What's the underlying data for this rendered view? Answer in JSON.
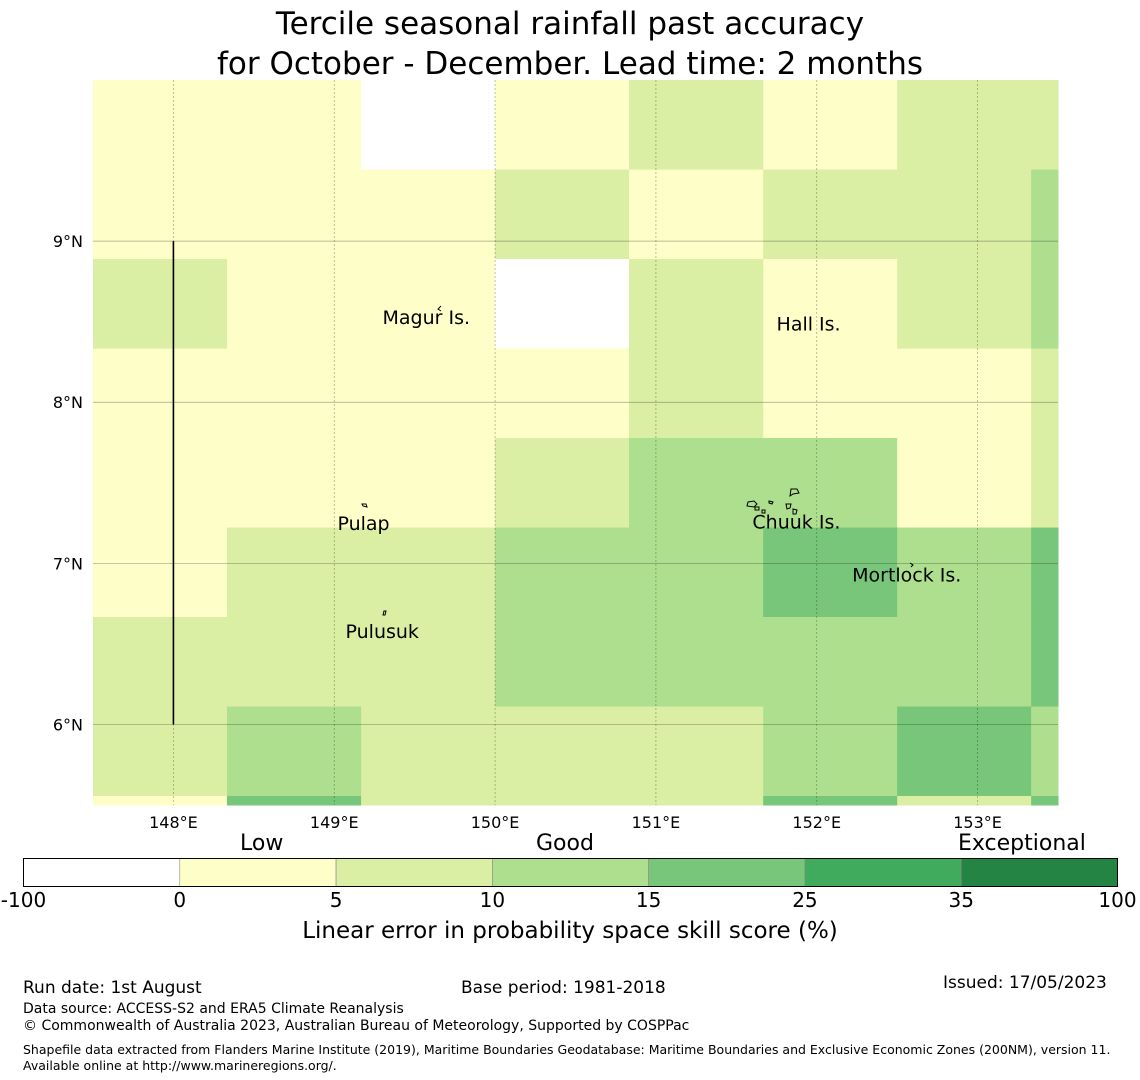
{
  "title_line1": "Tercile seasonal rainfall past accuracy",
  "title_line2": "for October - December. Lead time: 2 months",
  "map": {
    "lon_range": [
      147.5,
      153.5
    ],
    "lat_range": [
      5.5,
      10.0
    ],
    "x_ticks": [
      {
        "lon": 148,
        "label": "148°E"
      },
      {
        "lon": 149,
        "label": "149°E"
      },
      {
        "lon": 150,
        "label": "150°E"
      },
      {
        "lon": 151,
        "label": "151°E"
      },
      {
        "lon": 152,
        "label": "152°E"
      },
      {
        "lon": 153,
        "label": "153°E"
      }
    ],
    "y_ticks": [
      {
        "lat": 9,
        "label": "9°N"
      },
      {
        "lat": 8,
        "label": "8°N"
      },
      {
        "lat": 7,
        "label": "7°N"
      },
      {
        "lat": 6,
        "label": "6°N"
      }
    ],
    "grid_lon_edges": [
      147.5,
      148.333,
      149.167,
      150.0,
      150.833,
      151.667,
      152.5,
      153.333,
      153.5
    ],
    "grid_lat_edges": [
      10.0,
      9.444,
      8.889,
      8.333,
      7.778,
      7.222,
      6.667,
      6.111,
      5.556,
      5.5
    ],
    "cells": [
      [
        1,
        1,
        0,
        1,
        2,
        1,
        2,
        2
      ],
      [
        1,
        1,
        1,
        2,
        1,
        2,
        2,
        3
      ],
      [
        2,
        1,
        1,
        0,
        2,
        1,
        2,
        3
      ],
      [
        1,
        1,
        1,
        1,
        2,
        1,
        1,
        2
      ],
      [
        1,
        1,
        1,
        2,
        3,
        3,
        1,
        2
      ],
      [
        1,
        2,
        2,
        3,
        3,
        4,
        3,
        4
      ],
      [
        2,
        2,
        2,
        3,
        3,
        3,
        3,
        4
      ],
      [
        2,
        3,
        2,
        2,
        2,
        3,
        4,
        3
      ],
      [
        1,
        4,
        2,
        2,
        2,
        4,
        2,
        4
      ]
    ],
    "meridian_line": {
      "lon": 148,
      "lat_from": 6,
      "lat_to": 9
    },
    "places": [
      {
        "name": "Magur Is.",
        "lon": 149.3,
        "lat": 8.53
      },
      {
        "name": "Hall Is.",
        "lon": 151.75,
        "lat": 8.49
      },
      {
        "name": "Pulap",
        "lon": 149.02,
        "lat": 7.25
      },
      {
        "name": "Chuuk Is.",
        "lon": 151.6,
        "lat": 7.26
      },
      {
        "name": "Mortlock Is.",
        "lon": 152.22,
        "lat": 6.93
      },
      {
        "name": "Pulusuk",
        "lon": 149.07,
        "lat": 6.58
      }
    ]
  },
  "colorbar": {
    "categories": {
      "low": "Low",
      "good": "Good",
      "exceptional": "Exceptional"
    },
    "bins": [
      {
        "from": -100,
        "to": 0,
        "color": "#ffffff"
      },
      {
        "from": 0,
        "to": 5,
        "color": "#fefec8"
      },
      {
        "from": 5,
        "to": 10,
        "color": "#daeea4"
      },
      {
        "from": 10,
        "to": 15,
        "color": "#addf8e"
      },
      {
        "from": 15,
        "to": 25,
        "color": "#78c679"
      },
      {
        "from": 25,
        "to": 35,
        "color": "#41ab5d"
      },
      {
        "from": 35,
        "to": 100,
        "color": "#238443"
      }
    ],
    "tick_labels": [
      "-100",
      "0",
      "5",
      "10",
      "15",
      "25",
      "35",
      "100"
    ],
    "title": "Linear error in probability space skill score (%)"
  },
  "footer": {
    "run_date": "Run date: 1st August",
    "base_period": "Base period: 1981-2018",
    "issued": "Issued: 17/05/2023",
    "data_source": "Data source: ACCESS-S2 and ERA5 Climate Reanalysis",
    "copyright": "© Commonwealth of Australia 2023, Australian Bureau of Meteorology, Supported by COSPPac",
    "shapefile": "Shapefile data extracted from Flanders Marine Institute (2019), Maritime Boundaries Geodatabase: Maritime Boundaries and Exclusive Economic Zones (200NM), version 11. Available online at http://www.marineregions.org/."
  }
}
